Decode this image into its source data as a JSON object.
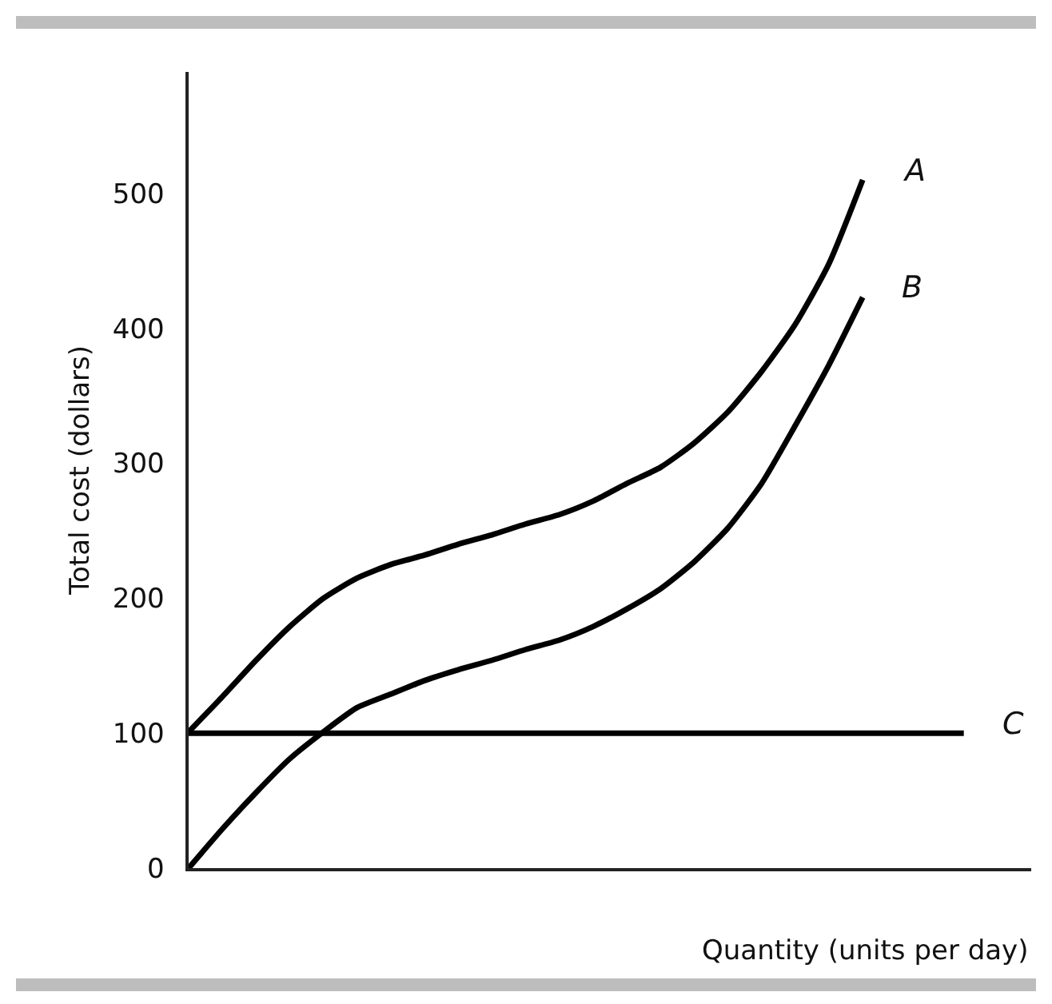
{
  "chart_data": {
    "type": "line",
    "xlabel": "Quantity (units per day)",
    "ylabel": "Total cost (dollars)",
    "categories": [
      null,
      null,
      null,
      null,
      null,
      null,
      null,
      null,
      null,
      null,
      null,
      null,
      null,
      null,
      null,
      null,
      null,
      null,
      null,
      null,
      null,
      null,
      null,
      null,
      null,
      null
    ],
    "ylim": [
      0,
      590
    ],
    "yticks": [
      0,
      100,
      200,
      300,
      400,
      500
    ],
    "grid": false,
    "legend": false,
    "tick_labels": "y",
    "marker": "none",
    "line_style": "solid",
    "series": [
      {
        "name": "A",
        "color": "#000000",
        "values": [
          101,
          127,
          154,
          179,
          200,
          215,
          225,
          232,
          240,
          247,
          255,
          262,
          272,
          285,
          297,
          315,
          338,
          368,
          403,
          448,
          510,
          null,
          null,
          null,
          null,
          null
        ]
      },
      {
        "name": "B",
        "color": "#000000",
        "values": [
          0,
          29,
          56,
          81,
          101,
          119,
          129,
          139,
          147,
          154,
          162,
          169,
          179,
          192,
          207,
          227,
          252,
          285,
          328,
          373,
          423,
          null,
          null,
          null,
          null,
          null
        ]
      },
      {
        "name": "C",
        "color": "#000000",
        "values": [
          100,
          100,
          100,
          100,
          100,
          100,
          100,
          100,
          100,
          100,
          100,
          100,
          100,
          100,
          100,
          100,
          100,
          100,
          100,
          100,
          100,
          100,
          100,
          100,
          null,
          null
        ]
      }
    ]
  }
}
